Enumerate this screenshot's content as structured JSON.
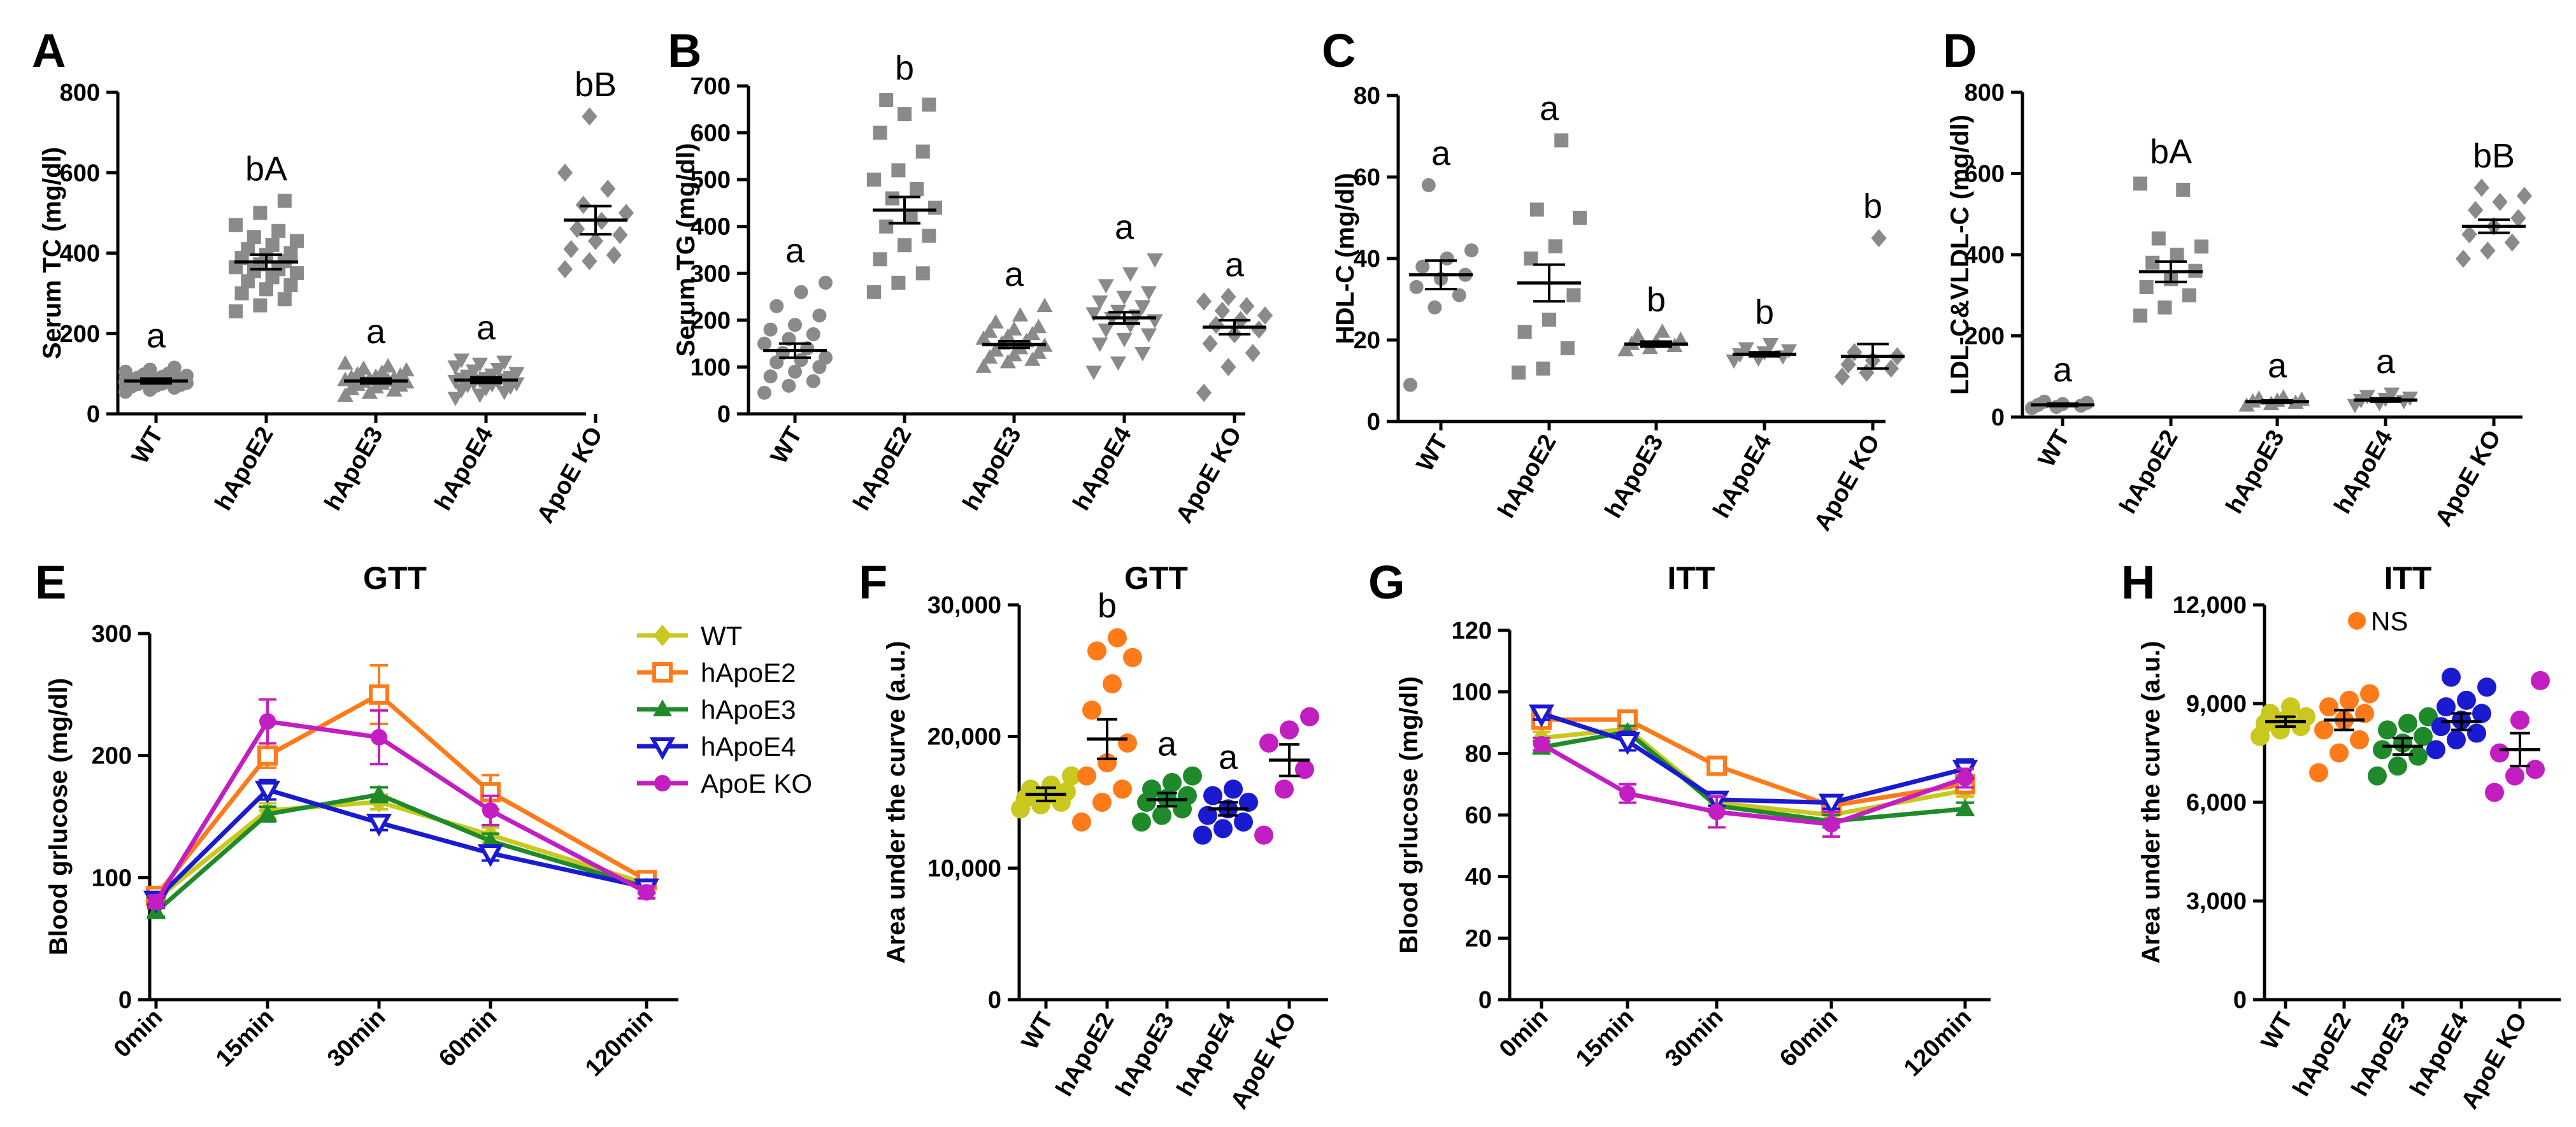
{
  "colors": {
    "dots": "#8a8a8a",
    "WT": "#c8c81e",
    "hApoE2": "#ff7b1a",
    "hApoE3": "#1f8a2a",
    "hApoE4": "#1a1ad0",
    "ApoE KO": "#c21ec2"
  },
  "groups": [
    "WT",
    "hApoE2",
    "hApoE3",
    "hApoE4",
    "ApoE KO"
  ],
  "chart_data": [
    {
      "panel": "A",
      "type": "scatter",
      "ylabel": "Serum TC (mg/dl)",
      "ylim": [
        0,
        800
      ],
      "yticks": [
        0,
        200,
        400,
        600,
        800
      ],
      "tick_labels": [
        "0",
        "200",
        "400",
        "600",
        "800"
      ],
      "categories": [
        "WT",
        "hApoE2",
        "hApoE3",
        "hApoE4",
        "ApoE KO"
      ],
      "means": [
        82,
        378,
        82,
        84,
        482
      ],
      "sem": [
        6,
        18,
        6,
        7,
        35
      ],
      "annotations": [
        "a",
        "bA",
        "a",
        "a",
        "bB"
      ],
      "points": [
        [
          55,
          60,
          65,
          68,
          70,
          72,
          74,
          75,
          77,
          78,
          80,
          80,
          82,
          84,
          85,
          86,
          88,
          90,
          92,
          95,
          98,
          100,
          105,
          110,
          115
        ],
        [
          255,
          270,
          285,
          300,
          310,
          320,
          330,
          340,
          350,
          355,
          360,
          365,
          372,
          380,
          388,
          395,
          400,
          410,
          420,
          430,
          440,
          455,
          470,
          500,
          530
        ],
        [
          45,
          52,
          58,
          62,
          66,
          70,
          72,
          75,
          78,
          80,
          82,
          84,
          86,
          88,
          90,
          92,
          95,
          98,
          102,
          108,
          112,
          118,
          125
        ],
        [
          40,
          48,
          55,
          60,
          64,
          68,
          72,
          74,
          76,
          78,
          80,
          82,
          84,
          86,
          88,
          90,
          92,
          95,
          98,
          102,
          108,
          112,
          118,
          125,
          130,
          135
        ],
        [
          360,
          380,
          395,
          410,
          430,
          445,
          460,
          480,
          500,
          520,
          560,
          600,
          740
        ]
      ]
    },
    {
      "panel": "B",
      "type": "scatter",
      "ylabel": "Serum TG (mg/dl)",
      "ylim": [
        0,
        700
      ],
      "yticks": [
        0,
        100,
        200,
        300,
        400,
        500,
        600,
        700
      ],
      "tick_labels": [
        "0",
        "100",
        "200",
        "300",
        "400",
        "500",
        "600",
        "700"
      ],
      "categories": [
        "WT",
        "hApoE2",
        "hApoE3",
        "hApoE4",
        "ApoE KO"
      ],
      "means": [
        135,
        435,
        148,
        205,
        185
      ],
      "sem": [
        15,
        28,
        7,
        12,
        15
      ],
      "annotations": [
        "a",
        "b",
        "a",
        "a",
        "a"
      ],
      "points": [
        [
          45,
          60,
          70,
          80,
          90,
          100,
          110,
          115,
          120,
          130,
          140,
          150,
          160,
          170,
          180,
          190,
          210,
          230,
          260,
          280
        ],
        [
          260,
          280,
          300,
          330,
          360,
          380,
          400,
          420,
          440,
          460,
          480,
          500,
          520,
          560,
          600,
          640,
          660,
          670
        ],
        [
          100,
          110,
          115,
          120,
          125,
          130,
          135,
          140,
          145,
          150,
          155,
          160,
          165,
          170,
          175,
          180,
          185,
          195,
          210,
          230
        ],
        [
          90,
          110,
          130,
          150,
          160,
          170,
          180,
          190,
          200,
          205,
          210,
          215,
          220,
          230,
          240,
          250,
          260,
          275,
          300,
          330
        ],
        [
          45,
          100,
          130,
          150,
          170,
          180,
          190,
          200,
          210,
          220,
          230,
          240,
          250
        ]
      ]
    },
    {
      "panel": "C",
      "type": "scatter",
      "ylabel": "HDL-C (mg/dl)",
      "ylim": [
        0,
        80
      ],
      "yticks": [
        0,
        20,
        40,
        60,
        80
      ],
      "tick_labels": [
        "0",
        "20",
        "40",
        "60",
        "80"
      ],
      "categories": [
        "WT",
        "hApoE2",
        "hApoE3",
        "hApoE4",
        "ApoE KO"
      ],
      "means": [
        36,
        34,
        19,
        16.5,
        16
      ],
      "sem": [
        3.5,
        4.5,
        0.6,
        0.5,
        3
      ],
      "annotations": [
        "a",
        "a",
        "b",
        "b",
        "b"
      ],
      "points": [
        [
          9,
          28,
          31,
          33,
          35,
          36,
          38,
          40,
          42,
          58
        ],
        [
          12,
          13,
          18,
          22,
          25,
          31,
          40,
          43,
          50,
          52,
          69
        ],
        [
          17.5,
          18,
          18.5,
          19,
          19.5,
          20,
          21,
          22
        ],
        [
          15,
          15.5,
          16,
          16.5,
          17,
          17.5,
          18,
          19
        ],
        [
          11,
          12,
          13,
          14,
          15,
          16,
          17,
          45
        ]
      ]
    },
    {
      "panel": "D",
      "type": "scatter",
      "ylabel": "LDL-C&VLDL-C (mg/dl)",
      "ylim": [
        0,
        800
      ],
      "yticks": [
        0,
        200,
        400,
        600,
        800
      ],
      "tick_labels": [
        "0",
        "200",
        "400",
        "600",
        "800"
      ],
      "categories": [
        "WT",
        "hApoE2",
        "hApoE3",
        "hApoE4",
        "ApoE KO"
      ],
      "means": [
        30,
        358,
        38,
        42,
        470
      ],
      "sem": [
        3,
        25,
        3,
        4,
        16
      ],
      "annotations": [
        "a",
        "bA",
        "a",
        "a",
        "bB"
      ],
      "points": [
        [
          22,
          25,
          28,
          30,
          32,
          35,
          38
        ],
        [
          250,
          270,
          300,
          320,
          340,
          360,
          380,
          400,
          420,
          440,
          560,
          575
        ],
        [
          28,
          32,
          35,
          38,
          40,
          42,
          45,
          48
        ],
        [
          30,
          35,
          40,
          42,
          45,
          48,
          52,
          58
        ],
        [
          390,
          410,
          430,
          450,
          470,
          490,
          510,
          530,
          545,
          565
        ]
      ]
    },
    {
      "panel": "E",
      "type": "line",
      "title": "GTT",
      "ylabel": "Blood grlucose (mg/dl)",
      "x": [
        "0min",
        "15min",
        "30min",
        "60min",
        "120min"
      ],
      "ylim": [
        0,
        300
      ],
      "yticks": [
        0,
        100,
        200,
        300
      ],
      "tick_labels": [
        "0",
        "100",
        "200",
        "300"
      ],
      "series": [
        {
          "name": "WT",
          "values": [
            82,
            155,
            162,
            135,
            95
          ],
          "err": [
            4,
            6,
            6,
            6,
            4
          ]
        },
        {
          "name": "hApoE2",
          "values": [
            85,
            200,
            250,
            170,
            98
          ],
          "err": [
            5,
            10,
            24,
            14,
            5
          ]
        },
        {
          "name": "hApoE3",
          "values": [
            72,
            152,
            168,
            130,
            92
          ],
          "err": [
            4,
            6,
            6,
            6,
            4
          ]
        },
        {
          "name": "hApoE4",
          "values": [
            82,
            172,
            145,
            120,
            92
          ],
          "err": [
            4,
            8,
            6,
            6,
            4
          ]
        },
        {
          "name": "ApoE KO",
          "values": [
            80,
            228,
            215,
            155,
            88
          ],
          "err": [
            5,
            18,
            22,
            12,
            5
          ]
        }
      ]
    },
    {
      "panel": "F",
      "type": "scatter",
      "title": "GTT",
      "ylabel": "Area under the curve (a.u.)",
      "ylim": [
        0,
        30000
      ],
      "yticks": [
        0,
        10000,
        20000,
        30000
      ],
      "tick_labels": [
        "0",
        "10,000",
        "20,000",
        "30,000"
      ],
      "categories": [
        "WT",
        "hApoE2",
        "hApoE3",
        "hApoE4",
        "ApoE KO"
      ],
      "means": [
        15600,
        19800,
        15200,
        14500,
        18200
      ],
      "sem": [
        500,
        1500,
        500,
        500,
        1200
      ],
      "annotations": [
        "",
        "b",
        "a",
        "a",
        ""
      ],
      "points": [
        [
          14500,
          14800,
          15000,
          15300,
          15500,
          15800,
          16000,
          16300,
          17000
        ],
        [
          13500,
          15000,
          16000,
          17000,
          18000,
          19500,
          22000,
          24000,
          26000,
          26500,
          27500
        ],
        [
          13500,
          14000,
          14500,
          15000,
          15300,
          15500,
          16000,
          16500,
          17000
        ],
        [
          12500,
          13000,
          13500,
          14000,
          14500,
          15000,
          15500,
          16000
        ],
        [
          12500,
          16000,
          17500,
          19500,
          20500,
          21500
        ]
      ]
    },
    {
      "panel": "G",
      "type": "line",
      "title": "ITT",
      "ylabel": "Blood grlucose (mg/dl)",
      "x": [
        "0min",
        "15min",
        "30min",
        "60min",
        "120min"
      ],
      "ylim": [
        0,
        120
      ],
      "yticks": [
        0,
        20,
        40,
        60,
        80,
        100,
        120
      ],
      "tick_labels": [
        "0",
        "20",
        "40",
        "60",
        "80",
        "100",
        "120"
      ],
      "series": [
        {
          "name": "WT",
          "values": [
            85,
            88,
            64,
            60,
            68
          ],
          "err": [
            2,
            2,
            2,
            2,
            2
          ]
        },
        {
          "name": "hApoE2",
          "values": [
            91,
            91,
            76,
            63,
            70
          ],
          "err": [
            2,
            2,
            2,
            2,
            2
          ]
        },
        {
          "name": "hApoE3",
          "values": [
            82,
            87,
            63,
            58,
            62
          ],
          "err": [
            2,
            2,
            2,
            2,
            2
          ]
        },
        {
          "name": "hApoE4",
          "values": [
            93,
            84,
            65,
            64,
            75
          ],
          "err": [
            2,
            3,
            2,
            2,
            3
          ]
        },
        {
          "name": "ApoE KO",
          "values": [
            83,
            67,
            61,
            57,
            72
          ],
          "err": [
            2,
            3,
            5,
            4,
            3
          ]
        }
      ]
    },
    {
      "panel": "H",
      "type": "scatter",
      "title": "ITT",
      "ylabel": "Area under the curve (a.u.)",
      "ylim": [
        0,
        12000
      ],
      "yticks": [
        0,
        3000,
        6000,
        9000,
        12000
      ],
      "tick_labels": [
        "0",
        "3,000",
        "6,000",
        "9,000",
        "12,000"
      ],
      "categories": [
        "WT",
        "hApoE2",
        "hApoE3",
        "hApoE4",
        "ApoE KO"
      ],
      "means": [
        8450,
        8500,
        7700,
        8450,
        7600
      ],
      "sem": [
        150,
        300,
        250,
        250,
        500
      ],
      "annotations": [
        "NS"
      ],
      "points": [
        [
          8000,
          8200,
          8300,
          8400,
          8500,
          8600,
          8700,
          8900
        ],
        [
          6900,
          7500,
          7900,
          8200,
          8500,
          8700,
          8900,
          9100,
          9300
        ],
        [
          6800,
          7100,
          7400,
          7600,
          7800,
          8000,
          8200,
          8400,
          8600
        ],
        [
          7600,
          7900,
          8100,
          8300,
          8500,
          8700,
          8900,
          9100,
          9500,
          9800
        ],
        [
          6300,
          6800,
          7000,
          7500,
          8500,
          9700
        ]
      ]
    }
  ]
}
